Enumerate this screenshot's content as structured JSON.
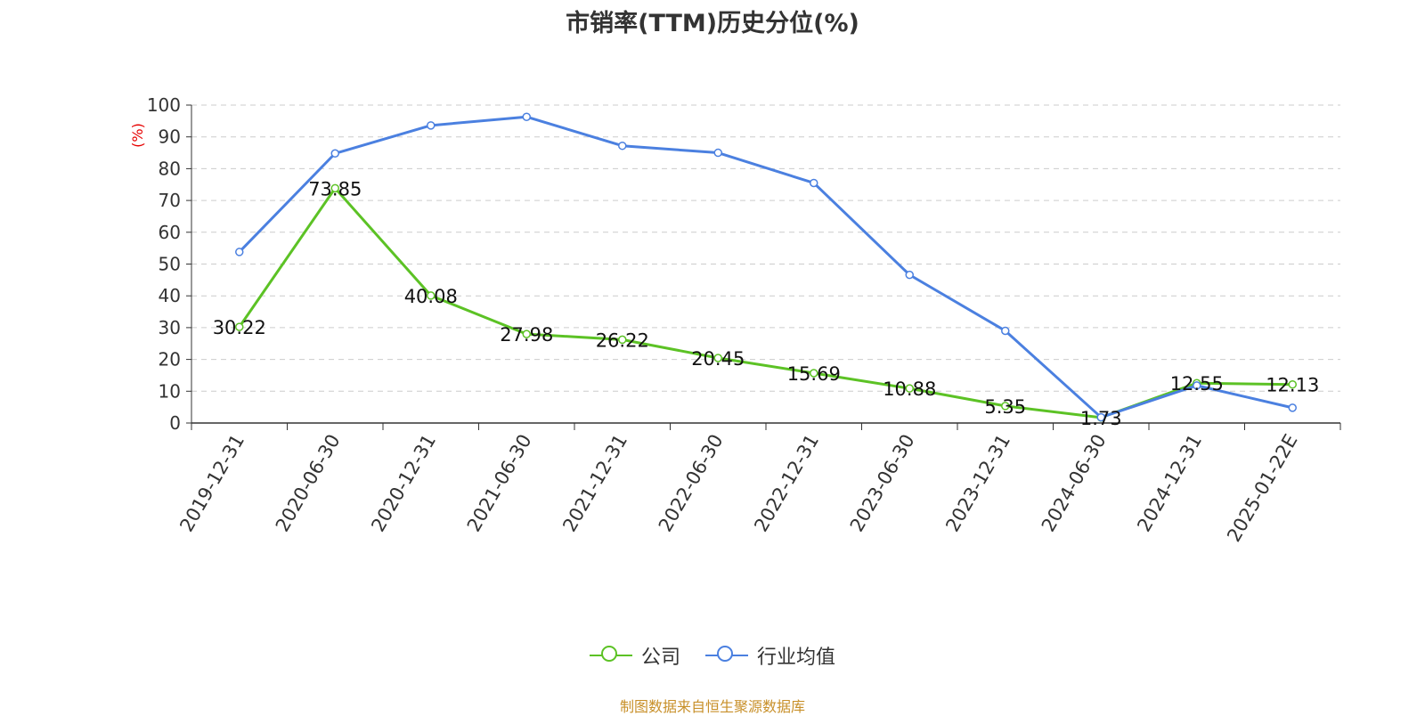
{
  "chart_data": {
    "type": "line",
    "title": "市销率(TTM)历史分位(%)",
    "ylabel": "(%)",
    "xlabel": "",
    "ylim": [
      0,
      100
    ],
    "yticks": [
      0,
      10,
      20,
      30,
      40,
      50,
      60,
      70,
      80,
      90,
      100
    ],
    "categories": [
      "2019-12-31",
      "2020-06-30",
      "2020-12-31",
      "2021-06-30",
      "2021-12-31",
      "2022-06-30",
      "2022-12-31",
      "2023-06-30",
      "2023-12-31",
      "2024-06-30",
      "2024-12-31",
      "2025-01-22E"
    ],
    "grid": true,
    "legend_position": "bottom-center",
    "series": [
      {
        "name": "公司",
        "color": "#5cc225",
        "values": [
          30.22,
          73.85,
          40.08,
          27.98,
          26.22,
          20.45,
          15.69,
          10.88,
          5.35,
          1.73,
          12.55,
          12.13
        ],
        "labels": [
          "30.22",
          "73.85",
          "40.08",
          "27.98",
          "26.22",
          "20.45",
          "15.69",
          "10.88",
          "5.35",
          "1.73",
          "12.55",
          "12.13"
        ]
      },
      {
        "name": "行业均值",
        "color": "#4b80e0",
        "values": [
          53.8,
          84.8,
          93.6,
          96.3,
          87.2,
          85.0,
          75.5,
          46.6,
          29.0,
          1.8,
          11.8,
          4.8
        ]
      }
    ]
  },
  "source_note": "制图数据来自恒生聚源数据库"
}
